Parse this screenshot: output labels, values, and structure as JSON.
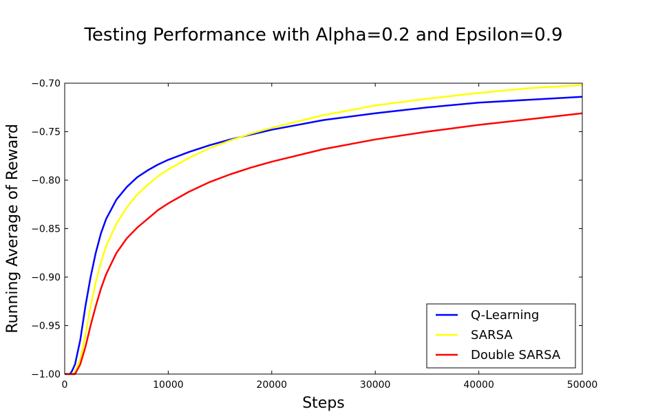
{
  "chart_data": {
    "type": "line",
    "title": "Testing Performance with Alpha=0.2 and Epsilon=0.9",
    "xlabel": "Steps",
    "ylabel": "Running Average of Reward",
    "xlim": [
      0,
      50000
    ],
    "ylim": [
      -1.0,
      -0.7
    ],
    "xticks": [
      0,
      10000,
      20000,
      30000,
      40000,
      50000
    ],
    "xtick_labels": [
      "0",
      "10000",
      "20000",
      "30000",
      "40000",
      "50000"
    ],
    "yticks": [
      -1.0,
      -0.95,
      -0.9,
      -0.85,
      -0.8,
      -0.75,
      -0.7
    ],
    "ytick_labels": [
      "−1.00",
      "−0.95",
      "−0.90",
      "−0.85",
      "−0.80",
      "−0.75",
      "−0.70"
    ],
    "grid": false,
    "legend_position": "bottom-right",
    "series": [
      {
        "name": "Q-Learning",
        "color": "#0000ff",
        "x": [
          0,
          500,
          700,
          1000,
          1500,
          2000,
          2500,
          3000,
          3500,
          4000,
          5000,
          6000,
          7000,
          8000,
          9000,
          10000,
          12000,
          14000,
          16000,
          18000,
          20000,
          25000,
          30000,
          35000,
          40000,
          45000,
          50000
        ],
        "y": [
          -1.0,
          -1.0,
          -0.997,
          -0.99,
          -0.965,
          -0.93,
          -0.9,
          -0.875,
          -0.855,
          -0.84,
          -0.82,
          -0.807,
          -0.797,
          -0.79,
          -0.784,
          -0.779,
          -0.771,
          -0.764,
          -0.758,
          -0.753,
          -0.748,
          -0.738,
          -0.731,
          -0.725,
          -0.72,
          -0.717,
          -0.714
        ]
      },
      {
        "name": "SARSA",
        "color": "#ffff00",
        "x": [
          0,
          800,
          1000,
          1500,
          2000,
          2500,
          3000,
          3500,
          4000,
          5000,
          6000,
          7000,
          8000,
          9000,
          10000,
          12000,
          14000,
          16000,
          18000,
          20000,
          25000,
          30000,
          35000,
          40000,
          45000,
          50000
        ],
        "y": [
          -1.0,
          -1.0,
          -0.998,
          -0.985,
          -0.96,
          -0.93,
          -0.905,
          -0.885,
          -0.868,
          -0.845,
          -0.828,
          -0.815,
          -0.805,
          -0.796,
          -0.789,
          -0.777,
          -0.767,
          -0.759,
          -0.752,
          -0.746,
          -0.733,
          -0.723,
          -0.716,
          -0.71,
          -0.705,
          -0.702
        ]
      },
      {
        "name": "Double SARSA",
        "color": "#ff0000",
        "x": [
          0,
          1000,
          1500,
          2000,
          2500,
          3000,
          3500,
          4000,
          5000,
          6000,
          7000,
          8000,
          9000,
          10000,
          12000,
          14000,
          16000,
          18000,
          20000,
          25000,
          30000,
          35000,
          40000,
          45000,
          50000
        ],
        "y": [
          -1.0,
          -1.0,
          -0.99,
          -0.972,
          -0.95,
          -0.93,
          -0.912,
          -0.897,
          -0.875,
          -0.86,
          -0.849,
          -0.84,
          -0.831,
          -0.824,
          -0.812,
          -0.802,
          -0.794,
          -0.787,
          -0.781,
          -0.768,
          -0.758,
          -0.75,
          -0.743,
          -0.737,
          -0.731
        ]
      }
    ]
  }
}
